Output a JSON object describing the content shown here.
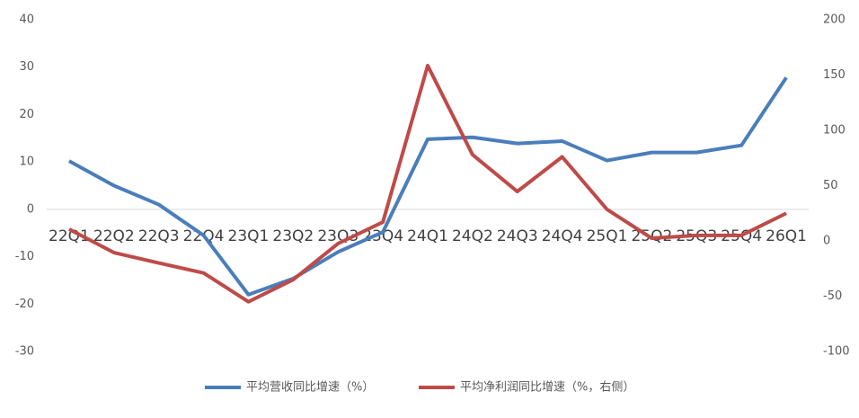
{
  "chart_data": {
    "type": "line",
    "categories": [
      "22Q1",
      "22Q2",
      "22Q3",
      "22Q4",
      "23Q1",
      "23Q2",
      "23Q3",
      "23Q4",
      "24Q1",
      "24Q2",
      "24Q3",
      "24Q4",
      "25Q1",
      "25Q2",
      "25Q3",
      "25Q4",
      "26Q1"
    ],
    "series": [
      {
        "name": "平均营收同比增速（%）",
        "color": "#4a7ebb",
        "values": [
          10.2,
          5,
          1,
          -5.5,
          -18,
          -14.6,
          -9,
          -4.8,
          14.8,
          15.2,
          13.9,
          14.4,
          10.3,
          12,
          12,
          13.5,
          27.8
        ]
      },
      {
        "name": "平均净利润同比增速（%，右侧）",
        "color": "#be4b48",
        "axis": "y2",
        "values": [
          10.6,
          -10.6,
          -20,
          -29,
          -55,
          -35,
          -2.4,
          17,
          158.5,
          78,
          44.7,
          76,
          28.5,
          2.4,
          5,
          5,
          25
        ]
      }
    ],
    "ylim": [
      -30,
      40
    ],
    "yticks": [
      -30,
      -20,
      -10,
      0,
      10,
      20,
      30,
      40
    ],
    "y2lim": [
      -100,
      200
    ],
    "y2ticks": [
      -100,
      -50,
      0,
      50,
      100,
      150,
      200
    ],
    "legend": "bottom"
  }
}
